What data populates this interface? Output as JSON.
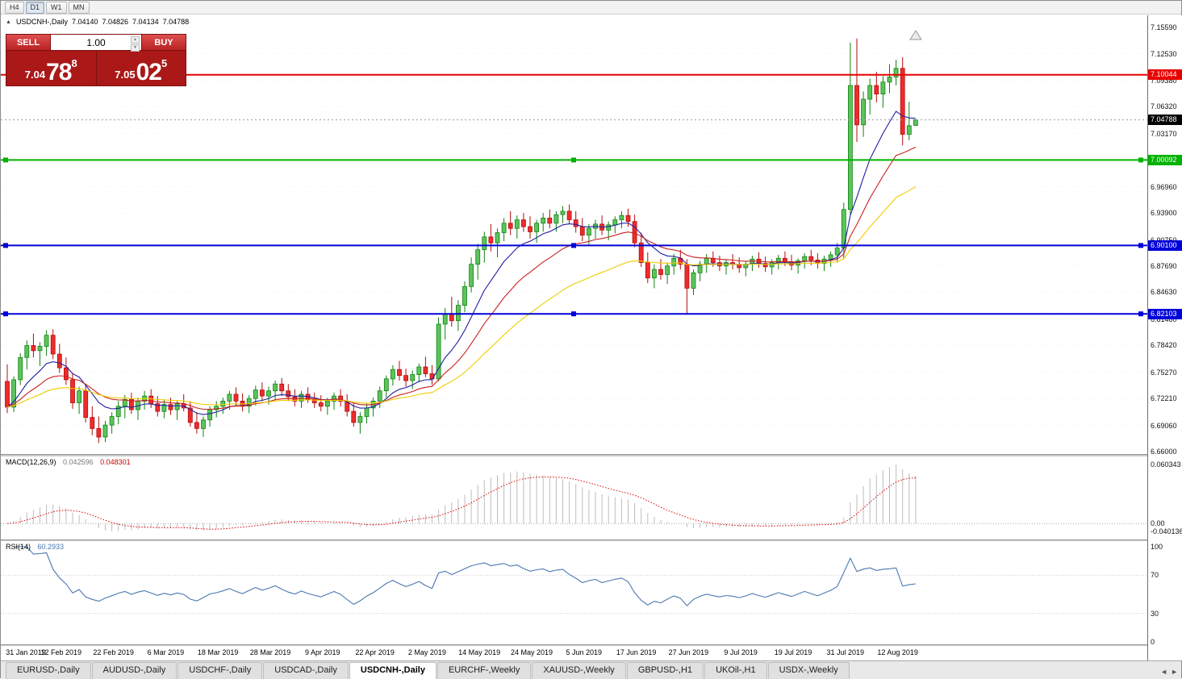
{
  "toolbar": {
    "timeframes": [
      {
        "label": "H4",
        "active": false
      },
      {
        "label": "D1",
        "active": true
      },
      {
        "label": "W1",
        "active": false
      },
      {
        "label": "MN",
        "active": false
      }
    ]
  },
  "chart_header": {
    "collapse_icon": "▲",
    "title": "USDCNH-,Daily",
    "open": "7.04140",
    "high": "7.04826",
    "low": "7.04134",
    "close": "7.04788"
  },
  "trade_panel": {
    "sell_label": "SELL",
    "buy_label": "BUY",
    "volume": "1.00",
    "sell_price": {
      "prefix": "7.04",
      "big": "78",
      "sup": "8"
    },
    "buy_price": {
      "prefix": "7.05",
      "big": "02",
      "sup": "5"
    }
  },
  "macd_panel": {
    "label": "MACD(12,26,9)",
    "value1": "0.042596",
    "value2": "0.048301",
    "axis_labels": [
      "0.060343",
      "0.00",
      "-0.040136"
    ]
  },
  "rsi_panel": {
    "label": "RSI(14)",
    "value": "60.2933",
    "axis_labels": [
      "100",
      "70",
      "30",
      "0"
    ]
  },
  "tabs": {
    "items": [
      {
        "label": "EURUSD-,Daily",
        "active": false
      },
      {
        "label": "AUDUSD-,Daily",
        "active": false
      },
      {
        "label": "USDCHF-,Daily",
        "active": false
      },
      {
        "label": "USDCAD-,Daily",
        "active": false
      },
      {
        "label": "USDCNH-,Daily",
        "active": true
      },
      {
        "label": "EURCHF-,Weekly",
        "active": false
      },
      {
        "label": "XAUUSD-,Weekly",
        "active": false
      },
      {
        "label": "GBPUSD-,H1",
        "active": false
      },
      {
        "label": "UKOil-,H1",
        "active": false
      },
      {
        "label": "USDX-,Weekly",
        "active": false
      }
    ],
    "scroll_left": "◄",
    "scroll_right": "►"
  },
  "colors": {
    "candle_up": "#5cc45c",
    "candle_up_border": "#118211",
    "candle_down": "#ee2c2c",
    "candle_down_border": "#b40c0c",
    "macd_hist": "#bdbdbd",
    "macd_signal": "#dd0000",
    "rsi_line": "#4a78b0",
    "hline_red": "#e80000",
    "hline_green": "#00b200",
    "hline_blue": "#0000d8",
    "current_badge": "#000000"
  },
  "chart_data": {
    "type": "candlestick",
    "symbol": "USDCNH-",
    "timeframe": "Daily",
    "price_range": [
      6.66,
      7.1559
    ],
    "current_price": 7.04788,
    "current_label": "7.04788",
    "axis_prices": [
      "7.15590",
      "7.12530",
      "7.09380",
      "7.06320",
      "7.03170",
      "6.96960",
      "6.93900",
      "6.90750",
      "6.87690",
      "6.84630",
      "6.81480",
      "6.78420",
      "6.75270",
      "6.72210",
      "6.69060",
      "6.66000"
    ],
    "hlines": [
      {
        "price": 7.10044,
        "label": "7.10044",
        "color": "#e80000",
        "handles": false
      },
      {
        "price": 7.00092,
        "label": "7.00092",
        "color": "#00b200",
        "handles": true
      },
      {
        "price": 6.901,
        "label": "6.90100",
        "color": "#0000d8",
        "handles": true
      },
      {
        "price": 6.82103,
        "label": "6.82103",
        "color": "#0000d8",
        "handles": true
      }
    ],
    "date_labels": [
      "31 Jan 2019",
      "12 Feb 2019",
      "22 Feb 2019",
      "6 Mar 2019",
      "18 Mar 2019",
      "28 Mar 2019",
      "9 Apr 2019",
      "22 Apr 2019",
      "2 May 2019",
      "14 May 2019",
      "24 May 2019",
      "5 Jun 2019",
      "17 Jun 2019",
      "27 Jun 2019",
      "9 Jul 2019",
      "19 Jul 2019",
      "31 Jul 2019",
      "12 Aug 2019"
    ],
    "label_step": 8,
    "moving_averages": [
      {
        "period": 9,
        "color": "#2020a0"
      },
      {
        "period": 18,
        "color": "#cc2020"
      },
      {
        "period": 36,
        "color": "#f0cd00"
      }
    ],
    "macd": {
      "fast": 12,
      "slow": 26,
      "signal": 9
    },
    "rsi": {
      "period": 14,
      "levels": [
        70,
        30
      ]
    },
    "candles": [
      [
        6.742,
        6.762,
        6.705,
        6.712
      ],
      [
        6.712,
        6.748,
        6.706,
        6.744
      ],
      [
        6.744,
        6.775,
        6.738,
        6.77
      ],
      [
        6.77,
        6.79,
        6.756,
        6.784
      ],
      [
        6.784,
        6.798,
        6.77,
        6.778
      ],
      [
        6.778,
        6.788,
        6.76,
        6.783
      ],
      [
        6.783,
        6.802,
        6.772,
        6.796
      ],
      [
        6.796,
        6.803,
        6.768,
        6.774
      ],
      [
        6.774,
        6.786,
        6.752,
        6.758
      ],
      [
        6.758,
        6.77,
        6.738,
        6.744
      ],
      [
        6.744,
        6.752,
        6.71,
        6.717
      ],
      [
        6.717,
        6.736,
        6.704,
        6.731
      ],
      [
        6.731,
        6.739,
        6.694,
        6.7
      ],
      [
        6.7,
        6.713,
        6.679,
        6.687
      ],
      [
        6.687,
        6.701,
        6.67,
        6.677
      ],
      [
        6.677,
        6.696,
        6.671,
        6.691
      ],
      [
        6.691,
        6.706,
        6.681,
        6.701
      ],
      [
        6.701,
        6.719,
        6.692,
        6.713
      ],
      [
        6.713,
        6.726,
        6.699,
        6.721
      ],
      [
        6.721,
        6.729,
        6.704,
        6.709
      ],
      [
        6.709,
        6.723,
        6.697,
        6.719
      ],
      [
        6.719,
        6.731,
        6.709,
        6.725
      ],
      [
        6.725,
        6.733,
        6.711,
        6.716
      ],
      [
        6.716,
        6.725,
        6.701,
        6.707
      ],
      [
        6.707,
        6.721,
        6.699,
        6.715
      ],
      [
        6.715,
        6.723,
        6.703,
        6.709
      ],
      [
        6.709,
        6.719,
        6.697,
        6.716
      ],
      [
        6.716,
        6.727,
        6.707,
        6.711
      ],
      [
        6.711,
        6.719,
        6.689,
        6.694
      ],
      [
        6.694,
        6.706,
        6.681,
        6.687
      ],
      [
        6.687,
        6.701,
        6.677,
        6.697
      ],
      [
        6.697,
        6.713,
        6.689,
        6.709
      ],
      [
        6.709,
        6.719,
        6.7,
        6.713
      ],
      [
        6.713,
        6.723,
        6.704,
        6.719
      ],
      [
        6.719,
        6.731,
        6.709,
        6.727
      ],
      [
        6.727,
        6.735,
        6.713,
        6.719
      ],
      [
        6.719,
        6.728,
        6.707,
        6.713
      ],
      [
        6.713,
        6.726,
        6.705,
        6.722
      ],
      [
        6.722,
        6.737,
        6.714,
        6.732
      ],
      [
        6.732,
        6.741,
        6.719,
        6.725
      ],
      [
        6.725,
        6.736,
        6.715,
        6.731
      ],
      [
        6.731,
        6.743,
        6.721,
        6.739
      ],
      [
        6.739,
        6.746,
        6.725,
        6.731
      ],
      [
        6.731,
        6.739,
        6.719,
        6.724
      ],
      [
        6.724,
        6.733,
        6.713,
        6.719
      ],
      [
        6.719,
        6.731,
        6.711,
        6.727
      ],
      [
        6.727,
        6.735,
        6.717,
        6.721
      ],
      [
        6.721,
        6.729,
        6.711,
        6.717
      ],
      [
        6.717,
        6.726,
        6.707,
        6.713
      ],
      [
        6.713,
        6.723,
        6.703,
        6.719
      ],
      [
        6.719,
        6.729,
        6.709,
        6.725
      ],
      [
        6.725,
        6.733,
        6.713,
        6.719
      ],
      [
        6.719,
        6.727,
        6.701,
        6.707
      ],
      [
        6.707,
        6.716,
        6.689,
        6.694
      ],
      [
        6.694,
        6.706,
        6.681,
        6.701
      ],
      [
        6.701,
        6.716,
        6.693,
        6.711
      ],
      [
        6.711,
        6.723,
        6.701,
        6.719
      ],
      [
        6.719,
        6.736,
        6.711,
        6.731
      ],
      [
        6.731,
        6.749,
        6.723,
        6.745
      ],
      [
        6.745,
        6.761,
        6.737,
        6.756
      ],
      [
        6.756,
        6.766,
        6.743,
        6.749
      ],
      [
        6.749,
        6.757,
        6.736,
        6.743
      ],
      [
        6.743,
        6.755,
        6.733,
        6.75
      ],
      [
        6.75,
        6.763,
        6.741,
        6.759
      ],
      [
        6.759,
        6.771,
        6.747,
        6.751
      ],
      [
        6.751,
        6.761,
        6.738,
        6.745
      ],
      [
        6.745,
        6.817,
        6.742,
        6.809
      ],
      [
        6.809,
        6.828,
        6.791,
        6.821
      ],
      [
        6.821,
        6.841,
        6.806,
        6.813
      ],
      [
        6.813,
        6.837,
        6.801,
        6.831
      ],
      [
        6.831,
        6.859,
        6.823,
        6.853
      ],
      [
        6.853,
        6.887,
        6.846,
        6.879
      ],
      [
        6.879,
        6.903,
        6.861,
        6.896
      ],
      [
        6.896,
        6.917,
        6.881,
        6.911
      ],
      [
        6.911,
        6.926,
        6.894,
        6.904
      ],
      [
        6.904,
        6.921,
        6.887,
        6.916
      ],
      [
        6.916,
        6.933,
        6.906,
        6.927
      ],
      [
        6.927,
        6.941,
        6.913,
        6.921
      ],
      [
        6.921,
        6.936,
        6.909,
        6.931
      ],
      [
        6.931,
        6.939,
        6.917,
        6.923
      ],
      [
        6.923,
        6.935,
        6.909,
        6.917
      ],
      [
        6.917,
        6.931,
        6.904,
        6.927
      ],
      [
        6.927,
        6.939,
        6.917,
        6.933
      ],
      [
        6.933,
        6.943,
        6.921,
        6.927
      ],
      [
        6.927,
        6.941,
        6.917,
        6.937
      ],
      [
        6.937,
        6.947,
        6.927,
        6.941
      ],
      [
        6.941,
        6.949,
        6.926,
        6.931
      ],
      [
        6.931,
        6.941,
        6.916,
        6.923
      ],
      [
        6.923,
        6.933,
        6.906,
        6.913
      ],
      [
        6.913,
        6.926,
        6.901,
        6.921
      ],
      [
        6.921,
        6.931,
        6.909,
        6.926
      ],
      [
        6.926,
        6.936,
        6.913,
        6.919
      ],
      [
        6.919,
        6.929,
        6.907,
        6.925
      ],
      [
        6.925,
        6.935,
        6.915,
        6.931
      ],
      [
        6.931,
        6.941,
        6.921,
        6.936
      ],
      [
        6.936,
        6.944,
        6.923,
        6.929
      ],
      [
        6.929,
        6.937,
        6.899,
        6.904
      ],
      [
        6.904,
        6.916,
        6.876,
        6.881
      ],
      [
        6.881,
        6.893,
        6.857,
        6.863
      ],
      [
        6.863,
        6.879,
        6.851,
        6.873
      ],
      [
        6.873,
        6.885,
        6.861,
        6.867
      ],
      [
        6.867,
        6.881,
        6.856,
        6.877
      ],
      [
        6.877,
        6.891,
        6.867,
        6.886
      ],
      [
        6.886,
        6.896,
        6.873,
        6.879
      ],
      [
        6.879,
        6.885,
        6.821,
        6.851
      ],
      [
        6.851,
        6.873,
        6.843,
        6.869
      ],
      [
        6.869,
        6.883,
        6.859,
        6.879
      ],
      [
        6.879,
        6.891,
        6.869,
        6.886
      ],
      [
        6.886,
        6.894,
        6.876,
        6.881
      ],
      [
        6.881,
        6.889,
        6.871,
        6.877
      ],
      [
        6.877,
        6.885,
        6.867,
        6.881
      ],
      [
        6.881,
        6.891,
        6.873,
        6.879
      ],
      [
        6.879,
        6.887,
        6.869,
        6.875
      ],
      [
        6.875,
        6.883,
        6.865,
        6.879
      ],
      [
        6.879,
        6.889,
        6.871,
        6.885
      ],
      [
        6.885,
        6.893,
        6.875,
        6.88
      ],
      [
        6.88,
        6.888,
        6.87,
        6.876
      ],
      [
        6.876,
        6.885,
        6.867,
        6.881
      ],
      [
        6.881,
        6.89,
        6.873,
        6.886
      ],
      [
        6.886,
        6.894,
        6.877,
        6.882
      ],
      [
        6.882,
        6.89,
        6.872,
        6.878
      ],
      [
        6.878,
        6.886,
        6.868,
        6.883
      ],
      [
        6.883,
        6.892,
        6.874,
        6.888
      ],
      [
        6.888,
        6.896,
        6.878,
        6.884
      ],
      [
        6.884,
        6.892,
        6.874,
        6.88
      ],
      [
        6.88,
        6.889,
        6.871,
        6.885
      ],
      [
        6.885,
        6.894,
        6.876,
        6.89
      ],
      [
        6.89,
        6.904,
        6.881,
        6.898
      ],
      [
        6.898,
        6.951,
        6.886,
        6.943
      ],
      [
        6.943,
        7.138,
        6.936,
        7.088
      ],
      [
        7.088,
        7.143,
        7.022,
        7.042
      ],
      [
        7.042,
        7.081,
        7.028,
        7.072
      ],
      [
        7.072,
        7.096,
        7.054,
        7.088
      ],
      [
        7.088,
        7.104,
        7.068,
        7.078
      ],
      [
        7.078,
        7.099,
        7.062,
        7.092
      ],
      [
        7.092,
        7.113,
        7.079,
        7.098
      ],
      [
        7.098,
        7.118,
        7.088,
        7.108
      ],
      [
        7.108,
        7.121,
        7.018,
        7.031
      ],
      [
        7.031,
        7.069,
        7.024,
        7.041
      ],
      [
        7.0414,
        7.0483,
        7.0413,
        7.0479
      ]
    ]
  }
}
